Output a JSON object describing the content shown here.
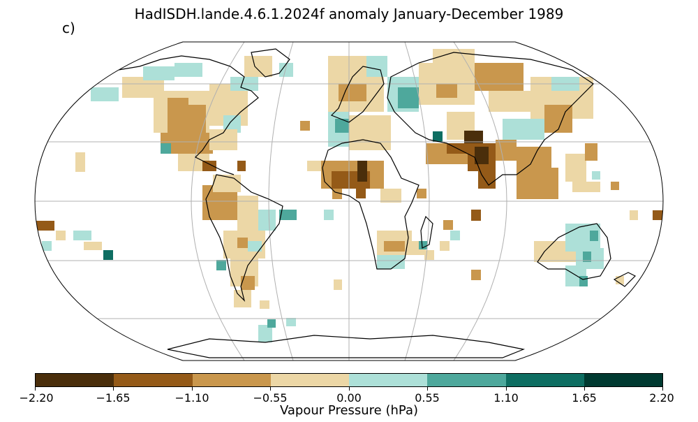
{
  "title": "HadISDH.lande.4.6.1.2024f anomaly January-December 1989",
  "panel_label": "c)",
  "projection": "Robinson",
  "colorbar": {
    "label": "Vapour Pressure (hPa)",
    "ticks": [
      "−2.20",
      "−1.65",
      "−1.10",
      "−0.55",
      "0.00",
      "0.55",
      "1.10",
      "1.65",
      "2.20"
    ],
    "colors": [
      "#4a2e0b",
      "#945a18",
      "#c9974d",
      "#ecd7a6",
      "#ade0d8",
      "#4ea89c",
      "#0e6e62",
      "#003a31"
    ]
  },
  "grid_color": "#b0b0b0"
}
